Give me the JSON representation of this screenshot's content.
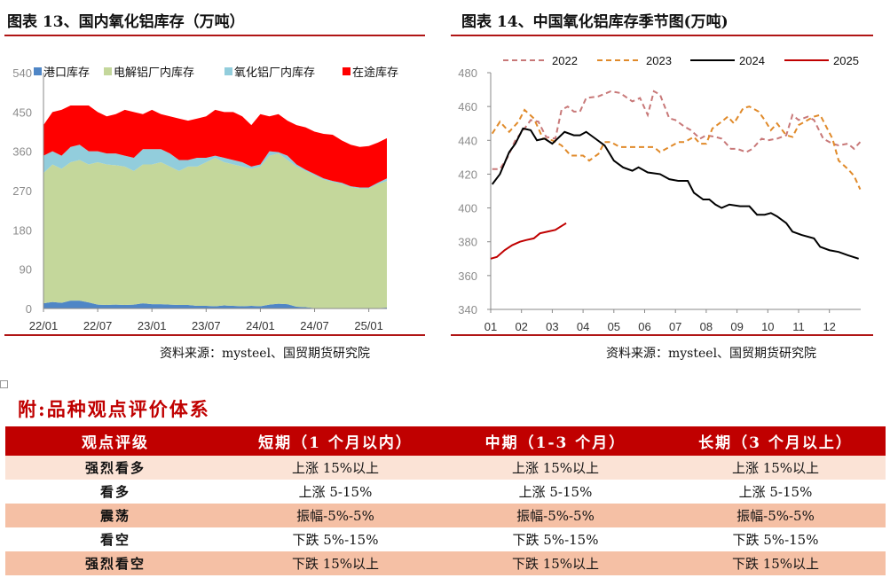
{
  "chart_data": [
    {
      "type": "area",
      "stacked": true,
      "title": "图表 13、国内氧化铝库存（万吨）",
      "source": "资料来源：mysteel、国贸期货研究院",
      "ylim": [
        0,
        540
      ],
      "yticks": [
        "0",
        "90",
        "180",
        "270",
        "360",
        "450",
        "540"
      ],
      "xticks": [
        "22/01",
        "22/07",
        "23/01",
        "23/07",
        "24/01",
        "24/07",
        "25/01"
      ],
      "x": [
        "22/01",
        "22/02",
        "22/03",
        "22/04",
        "22/05",
        "22/06",
        "22/07",
        "22/08",
        "22/09",
        "22/10",
        "22/11",
        "22/12",
        "23/01",
        "23/02",
        "23/03",
        "23/04",
        "23/05",
        "23/06",
        "23/07",
        "23/08",
        "23/09",
        "23/10",
        "23/11",
        "23/12",
        "24/01",
        "24/02",
        "24/03",
        "24/04",
        "24/05",
        "24/06",
        "24/07",
        "24/08",
        "24/09",
        "24/10",
        "24/11",
        "24/12",
        "25/01",
        "25/02",
        "25/03"
      ],
      "legend_position": "top",
      "series": [
        {
          "name": "港口库存",
          "color": "#4f86c6",
          "values": [
            12,
            15,
            13,
            18,
            18,
            14,
            9,
            8,
            9,
            8,
            9,
            12,
            10,
            10,
            9,
            8,
            8,
            6,
            6,
            5,
            7,
            6,
            5,
            6,
            5,
            9,
            11,
            10,
            4,
            3,
            1,
            1,
            1,
            1,
            1,
            1,
            1,
            1,
            2
          ]
        },
        {
          "name": "电解铝厂内库存",
          "color": "#c4d79b",
          "values": [
            298,
            315,
            307,
            317,
            322,
            316,
            326,
            322,
            319,
            317,
            306,
            318,
            320,
            325,
            316,
            307,
            317,
            319,
            329,
            340,
            328,
            324,
            320,
            314,
            320,
            341,
            344,
            330,
            321,
            312,
            304,
            294,
            289,
            284,
            277,
            274,
            274,
            284,
            290
          ]
        },
        {
          "name": "氧化铝厂内库存",
          "color": "#92cddc",
          "values": [
            40,
            30,
            30,
            35,
            35,
            30,
            25,
            25,
            27,
            25,
            30,
            35,
            35,
            30,
            30,
            25,
            15,
            20,
            10,
            5,
            10,
            10,
            10,
            5,
            5,
            10,
            3,
            10,
            5,
            3,
            3,
            3,
            2,
            3,
            2,
            2,
            2,
            3,
            6
          ]
        },
        {
          "name": "在途库存",
          "color": "#ff0000",
          "values": [
            70,
            90,
            105,
            95,
            90,
            105,
            90,
            85,
            90,
            105,
            105,
            80,
            90,
            80,
            85,
            95,
            90,
            90,
            95,
            105,
            105,
            110,
            105,
            95,
            115,
            80,
            87,
            80,
            90,
            97,
            97,
            102,
            106,
            97,
            95,
            93,
            95,
            92,
            92
          ]
        }
      ]
    },
    {
      "type": "line",
      "title": "图表 14、中国氧化铝库存季节图(万吨)",
      "source": "资料来源：mysteel、国贸期货研究院",
      "ylim": [
        340,
        480
      ],
      "yticks": [
        "340",
        "360",
        "380",
        "400",
        "420",
        "440",
        "460",
        "480"
      ],
      "xticks": [
        "01",
        "02",
        "03",
        "04",
        "05",
        "06",
        "07",
        "08",
        "09",
        "10",
        "11",
        "12"
      ],
      "xlim": [
        1,
        13
      ],
      "legend_position": "top",
      "series": [
        {
          "name": "2022",
          "color": "#c87878",
          "dashed": true,
          "points": [
            [
              1.05,
              423
            ],
            [
              1.3,
              423
            ],
            [
              1.55,
              430
            ],
            [
              1.8,
              440
            ],
            [
              2.1,
              447
            ],
            [
              2.3,
              452
            ],
            [
              2.55,
              451
            ],
            [
              2.8,
              442
            ],
            [
              3.1,
              441
            ],
            [
              3.3,
              458
            ],
            [
              3.5,
              460
            ],
            [
              3.7,
              457
            ],
            [
              3.9,
              457
            ],
            [
              4.1,
              465
            ],
            [
              4.5,
              466
            ],
            [
              4.9,
              469
            ],
            [
              5.2,
              468
            ],
            [
              5.6,
              463
            ],
            [
              5.85,
              465
            ],
            [
              6.1,
              455
            ],
            [
              6.3,
              469
            ],
            [
              6.5,
              467
            ],
            [
              6.8,
              453
            ],
            [
              7.0,
              452
            ],
            [
              7.3,
              448
            ],
            [
              7.5,
              446
            ],
            [
              7.8,
              441
            ],
            [
              8.0,
              443
            ],
            [
              8.3,
              442
            ],
            [
              8.5,
              441
            ],
            [
              8.8,
              435
            ],
            [
              9.0,
              435
            ],
            [
              9.3,
              433
            ],
            [
              9.5,
              435
            ],
            [
              9.8,
              441
            ],
            [
              10.0,
              440
            ],
            [
              10.3,
              441
            ],
            [
              10.6,
              443
            ],
            [
              10.8,
              455
            ],
            [
              11.0,
              452
            ],
            [
              11.3,
              454
            ],
            [
              11.5,
              452
            ],
            [
              11.8,
              441
            ],
            [
              12.1,
              438
            ],
            [
              12.3,
              437
            ],
            [
              12.6,
              438
            ],
            [
              12.8,
              435
            ],
            [
              13.0,
              439
            ]
          ]
        },
        {
          "name": "2023",
          "color": "#e08a2a",
          "dashed": true,
          "points": [
            [
              1.05,
              444
            ],
            [
              1.3,
              451
            ],
            [
              1.6,
              445
            ],
            [
              1.9,
              451
            ],
            [
              2.1,
              458
            ],
            [
              2.4,
              453
            ],
            [
              2.7,
              441
            ],
            [
              3.0,
              440
            ],
            [
              3.3,
              437
            ],
            [
              3.6,
              431
            ],
            [
              3.8,
              431
            ],
            [
              4.0,
              431
            ],
            [
              4.2,
              428
            ],
            [
              4.5,
              432
            ],
            [
              4.7,
              439
            ],
            [
              4.9,
              439
            ],
            [
              5.2,
              436
            ],
            [
              5.5,
              436
            ],
            [
              5.7,
              436
            ],
            [
              6.0,
              436
            ],
            [
              6.3,
              436
            ],
            [
              6.5,
              433
            ],
            [
              6.8,
              436
            ],
            [
              7.1,
              439
            ],
            [
              7.3,
              439
            ],
            [
              7.6,
              442
            ],
            [
              7.8,
              438
            ],
            [
              8.0,
              438
            ],
            [
              8.2,
              447
            ],
            [
              8.5,
              451
            ],
            [
              8.7,
              454
            ],
            [
              8.9,
              450
            ],
            [
              9.2,
              459
            ],
            [
              9.4,
              460
            ],
            [
              9.7,
              457
            ],
            [
              9.9,
              452
            ],
            [
              10.1,
              446
            ],
            [
              10.3,
              450
            ],
            [
              10.6,
              443
            ],
            [
              10.8,
              442
            ],
            [
              11.0,
              449
            ],
            [
              11.3,
              452
            ],
            [
              11.5,
              454
            ],
            [
              11.7,
              455
            ],
            [
              11.9,
              448
            ],
            [
              12.1,
              441
            ],
            [
              12.3,
              428
            ],
            [
              12.6,
              423
            ],
            [
              12.8,
              419
            ],
            [
              13.0,
              411
            ]
          ]
        },
        {
          "name": "2024",
          "color": "#000000",
          "dashed": false,
          "points": [
            [
              1.05,
              414
            ],
            [
              1.3,
              420
            ],
            [
              1.6,
              433
            ],
            [
              1.8,
              438
            ],
            [
              2.05,
              447
            ],
            [
              2.3,
              446
            ],
            [
              2.5,
              440
            ],
            [
              2.75,
              441
            ],
            [
              3.0,
              438
            ],
            [
              3.4,
              445
            ],
            [
              3.7,
              443
            ],
            [
              3.9,
              443
            ],
            [
              4.1,
              445
            ],
            [
              4.4,
              441
            ],
            [
              4.7,
              437
            ],
            [
              5.0,
              428
            ],
            [
              5.3,
              424
            ],
            [
              5.6,
              422
            ],
            [
              5.8,
              424
            ],
            [
              6.1,
              421
            ],
            [
              6.5,
              420
            ],
            [
              6.8,
              417
            ],
            [
              7.1,
              416
            ],
            [
              7.4,
              416
            ],
            [
              7.6,
              409
            ],
            [
              7.9,
              405
            ],
            [
              8.1,
              405
            ],
            [
              8.3,
              402
            ],
            [
              8.5,
              400
            ],
            [
              8.75,
              402
            ],
            [
              9.1,
              401
            ],
            [
              9.4,
              401
            ],
            [
              9.65,
              396
            ],
            [
              9.9,
              396
            ],
            [
              10.1,
              397
            ],
            [
              10.3,
              395
            ],
            [
              10.6,
              391
            ],
            [
              10.8,
              386
            ],
            [
              11.1,
              384
            ],
            [
              11.5,
              382
            ],
            [
              11.7,
              377
            ],
            [
              12.0,
              375
            ],
            [
              12.3,
              374
            ],
            [
              12.6,
              372
            ],
            [
              12.95,
              370
            ]
          ]
        },
        {
          "name": "2025",
          "color": "#c00000",
          "dashed": false,
          "points": [
            [
              1.0,
              370
            ],
            [
              1.2,
              371
            ],
            [
              1.45,
              375
            ],
            [
              1.7,
              378
            ],
            [
              1.95,
              380
            ],
            [
              2.15,
              381
            ],
            [
              2.4,
              382
            ],
            [
              2.6,
              385
            ],
            [
              2.85,
              386
            ],
            [
              3.1,
              387
            ],
            [
              3.45,
              391
            ]
          ]
        }
      ]
    }
  ],
  "appendix": {
    "heading": "附:品种观点评价体系",
    "headers": [
      "观点评级",
      "短期（1 个月以内）",
      "中期（1-3 个月）",
      "长期（3 个月以上）"
    ],
    "rows": [
      [
        "强烈看多",
        "上涨 15%以上",
        "上涨 15%以上",
        "上涨 15%以上"
      ],
      [
        "看多",
        "上涨 5-15%",
        "上涨 5-15%",
        "上涨 5-15%"
      ],
      [
        "震荡",
        "振幅-5%-5%",
        "振幅-5%-5%",
        "振幅-5%-5%"
      ],
      [
        "看空",
        "下跌 5%-15%",
        "下跌 5%-15%",
        "下跌 5%-15%"
      ],
      [
        "强烈看空",
        "下跌 15%以上",
        "下跌 15%以上",
        "下跌 15%以上"
      ]
    ]
  }
}
